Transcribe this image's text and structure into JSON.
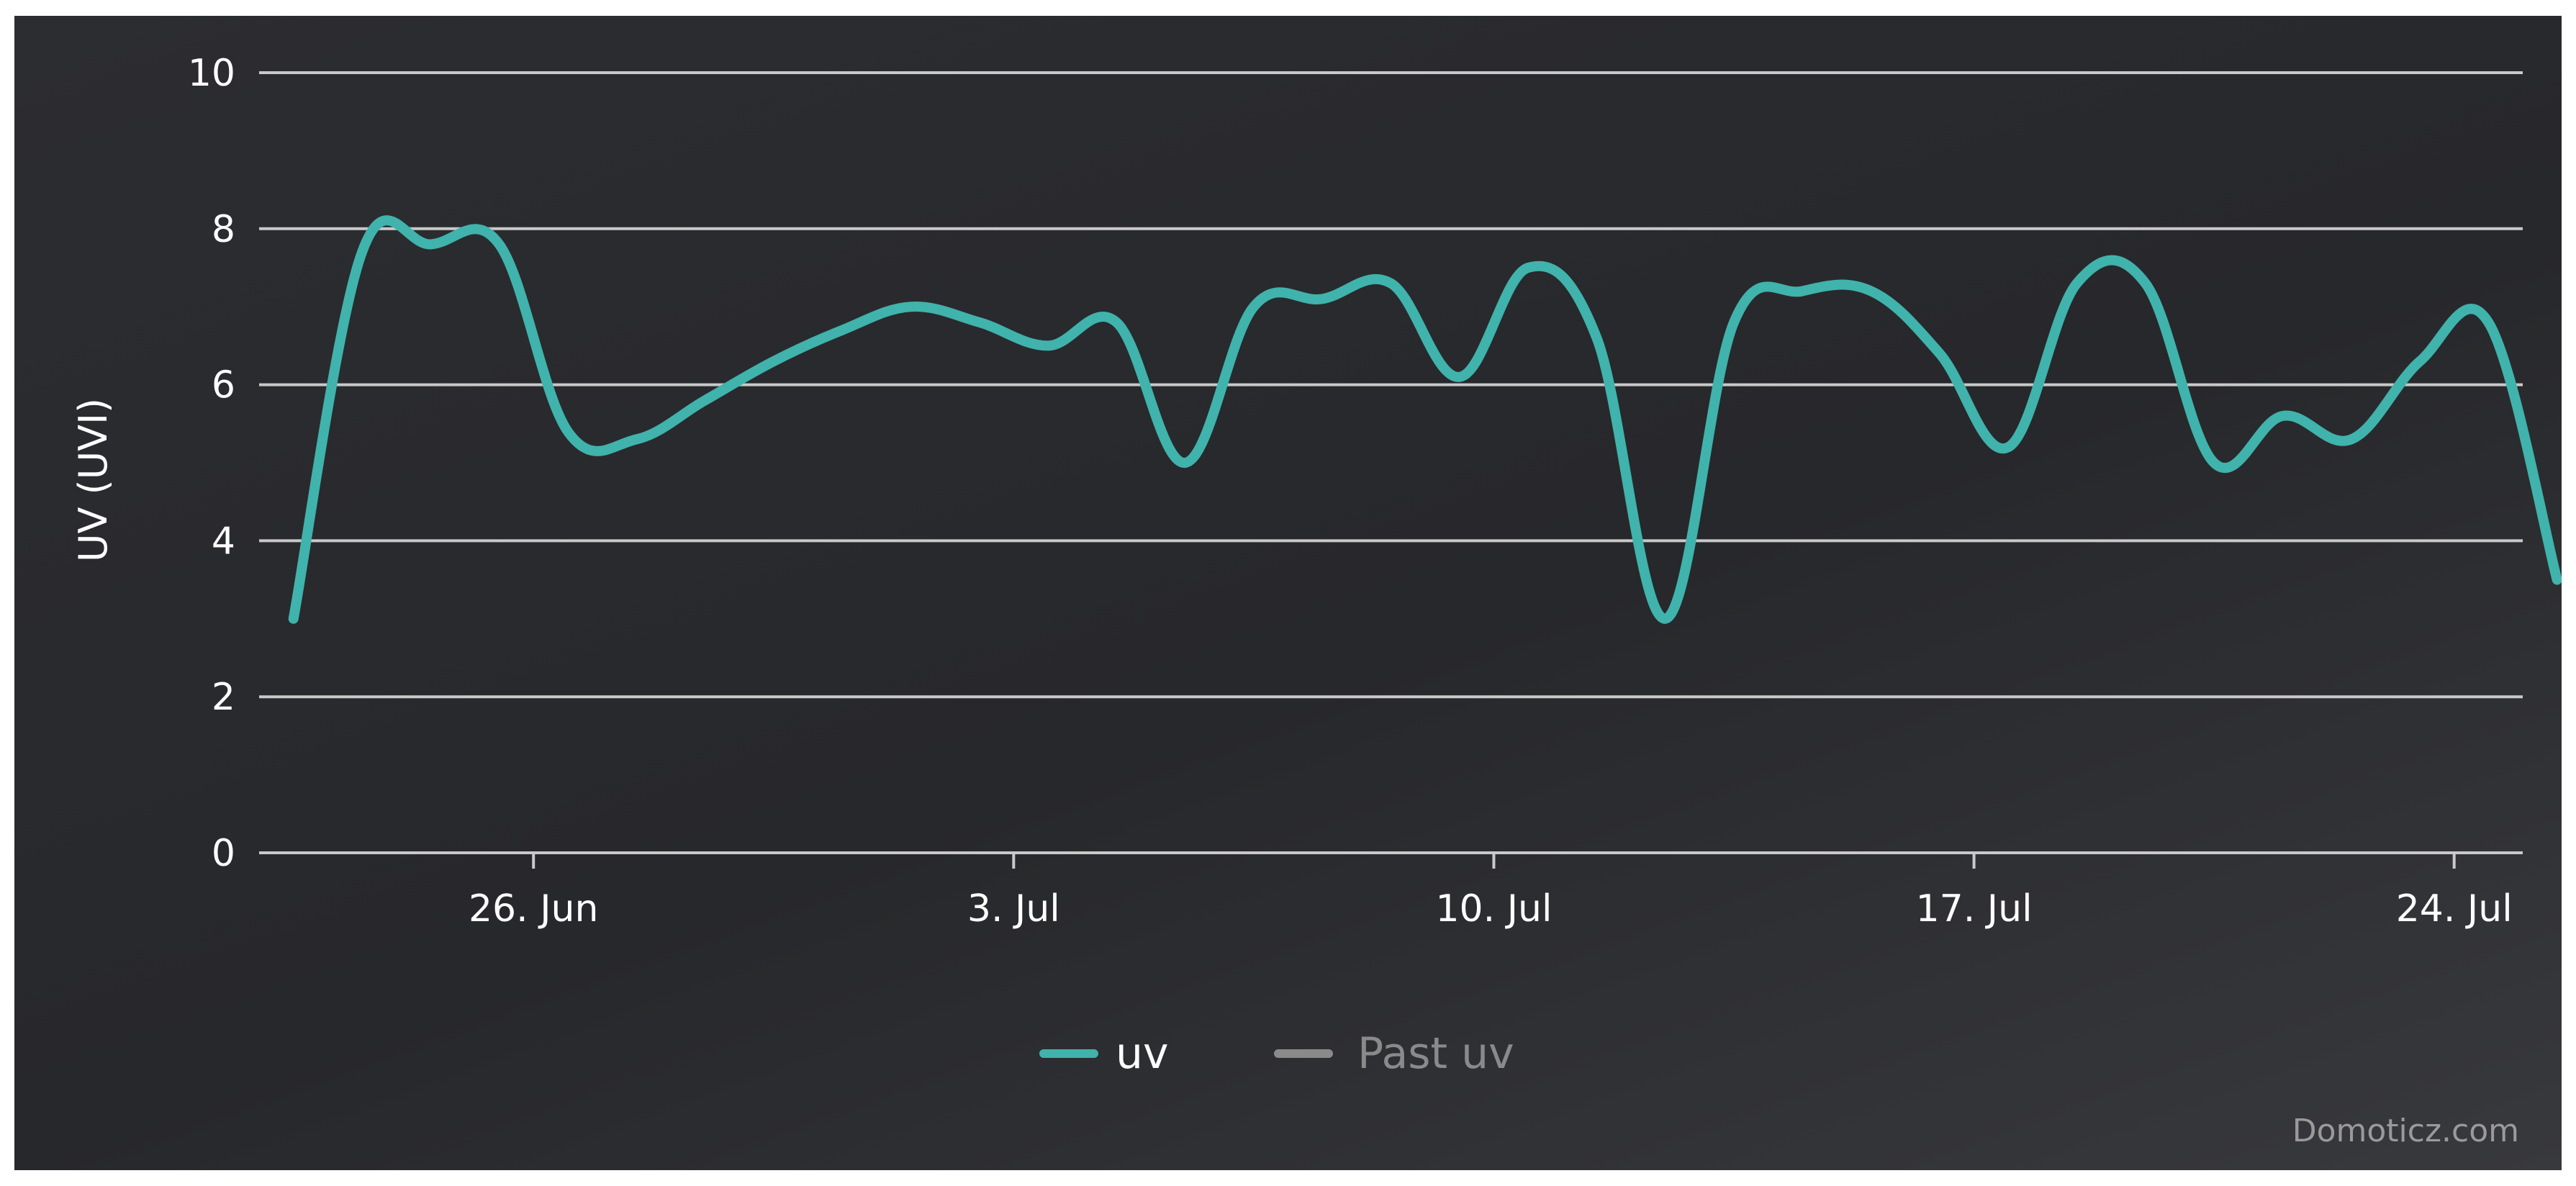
{
  "chart_data": {
    "type": "line",
    "title": "",
    "xlabel": "",
    "ylabel": "UV (UVI)",
    "ylim": [
      0,
      10
    ],
    "xlim": [
      "2017-06-22",
      "2017-07-25"
    ],
    "yticks": [
      0,
      2,
      4,
      6,
      8,
      10
    ],
    "xticks": [
      {
        "date": "2017-06-26",
        "label": "26. Jun"
      },
      {
        "date": "2017-07-03",
        "label": "3. Jul"
      },
      {
        "date": "2017-07-10",
        "label": "10. Jul"
      },
      {
        "date": "2017-07-17",
        "label": "17. Jul"
      },
      {
        "date": "2017-07-24",
        "label": "24. Jul"
      }
    ],
    "grid": true,
    "legend": {
      "placement": "bottom-center",
      "items": [
        {
          "name": "uv",
          "color": "#3fb3ac",
          "active": true
        },
        {
          "name": "Past uv",
          "color": "#8a8a8a",
          "active": false
        }
      ]
    },
    "series": [
      {
        "name": "uv",
        "color": "#3fb3ac",
        "x": [
          "2017-06-22 12:00",
          "2017-06-23 12:00",
          "2017-06-24 12:00",
          "2017-06-25 12:00",
          "2017-06-26 12:00",
          "2017-06-27 12:00",
          "2017-06-28 12:00",
          "2017-06-29 12:00",
          "2017-06-30 12:00",
          "2017-07-01 12:00",
          "2017-07-02 12:00",
          "2017-07-03 12:00",
          "2017-07-04 12:00",
          "2017-07-05 12:00",
          "2017-07-06 12:00",
          "2017-07-07 12:00",
          "2017-07-08 12:00",
          "2017-07-09 12:00",
          "2017-07-10 12:00",
          "2017-07-11 12:00",
          "2017-07-12 12:00",
          "2017-07-13 12:00",
          "2017-07-14 12:00",
          "2017-07-15 12:00",
          "2017-07-16 12:00",
          "2017-07-17 12:00",
          "2017-07-18 12:00",
          "2017-07-19 12:00",
          "2017-07-20 12:00",
          "2017-07-21 12:00",
          "2017-07-22 12:00",
          "2017-07-23 12:00",
          "2017-07-24 12:00",
          "2017-07-25 12:00"
        ],
        "values": [
          3.0,
          7.7,
          7.8,
          7.8,
          5.4,
          5.3,
          5.8,
          6.3,
          6.7,
          7.0,
          6.8,
          6.5,
          6.8,
          5.0,
          7.0,
          7.1,
          7.3,
          6.1,
          7.5,
          6.6,
          3.0,
          6.8,
          7.2,
          7.2,
          6.4,
          5.2,
          7.3,
          7.3,
          5.0,
          5.6,
          5.3,
          6.3,
          6.8,
          3.5
        ]
      }
    ]
  },
  "credits": "Domoticz.com"
}
